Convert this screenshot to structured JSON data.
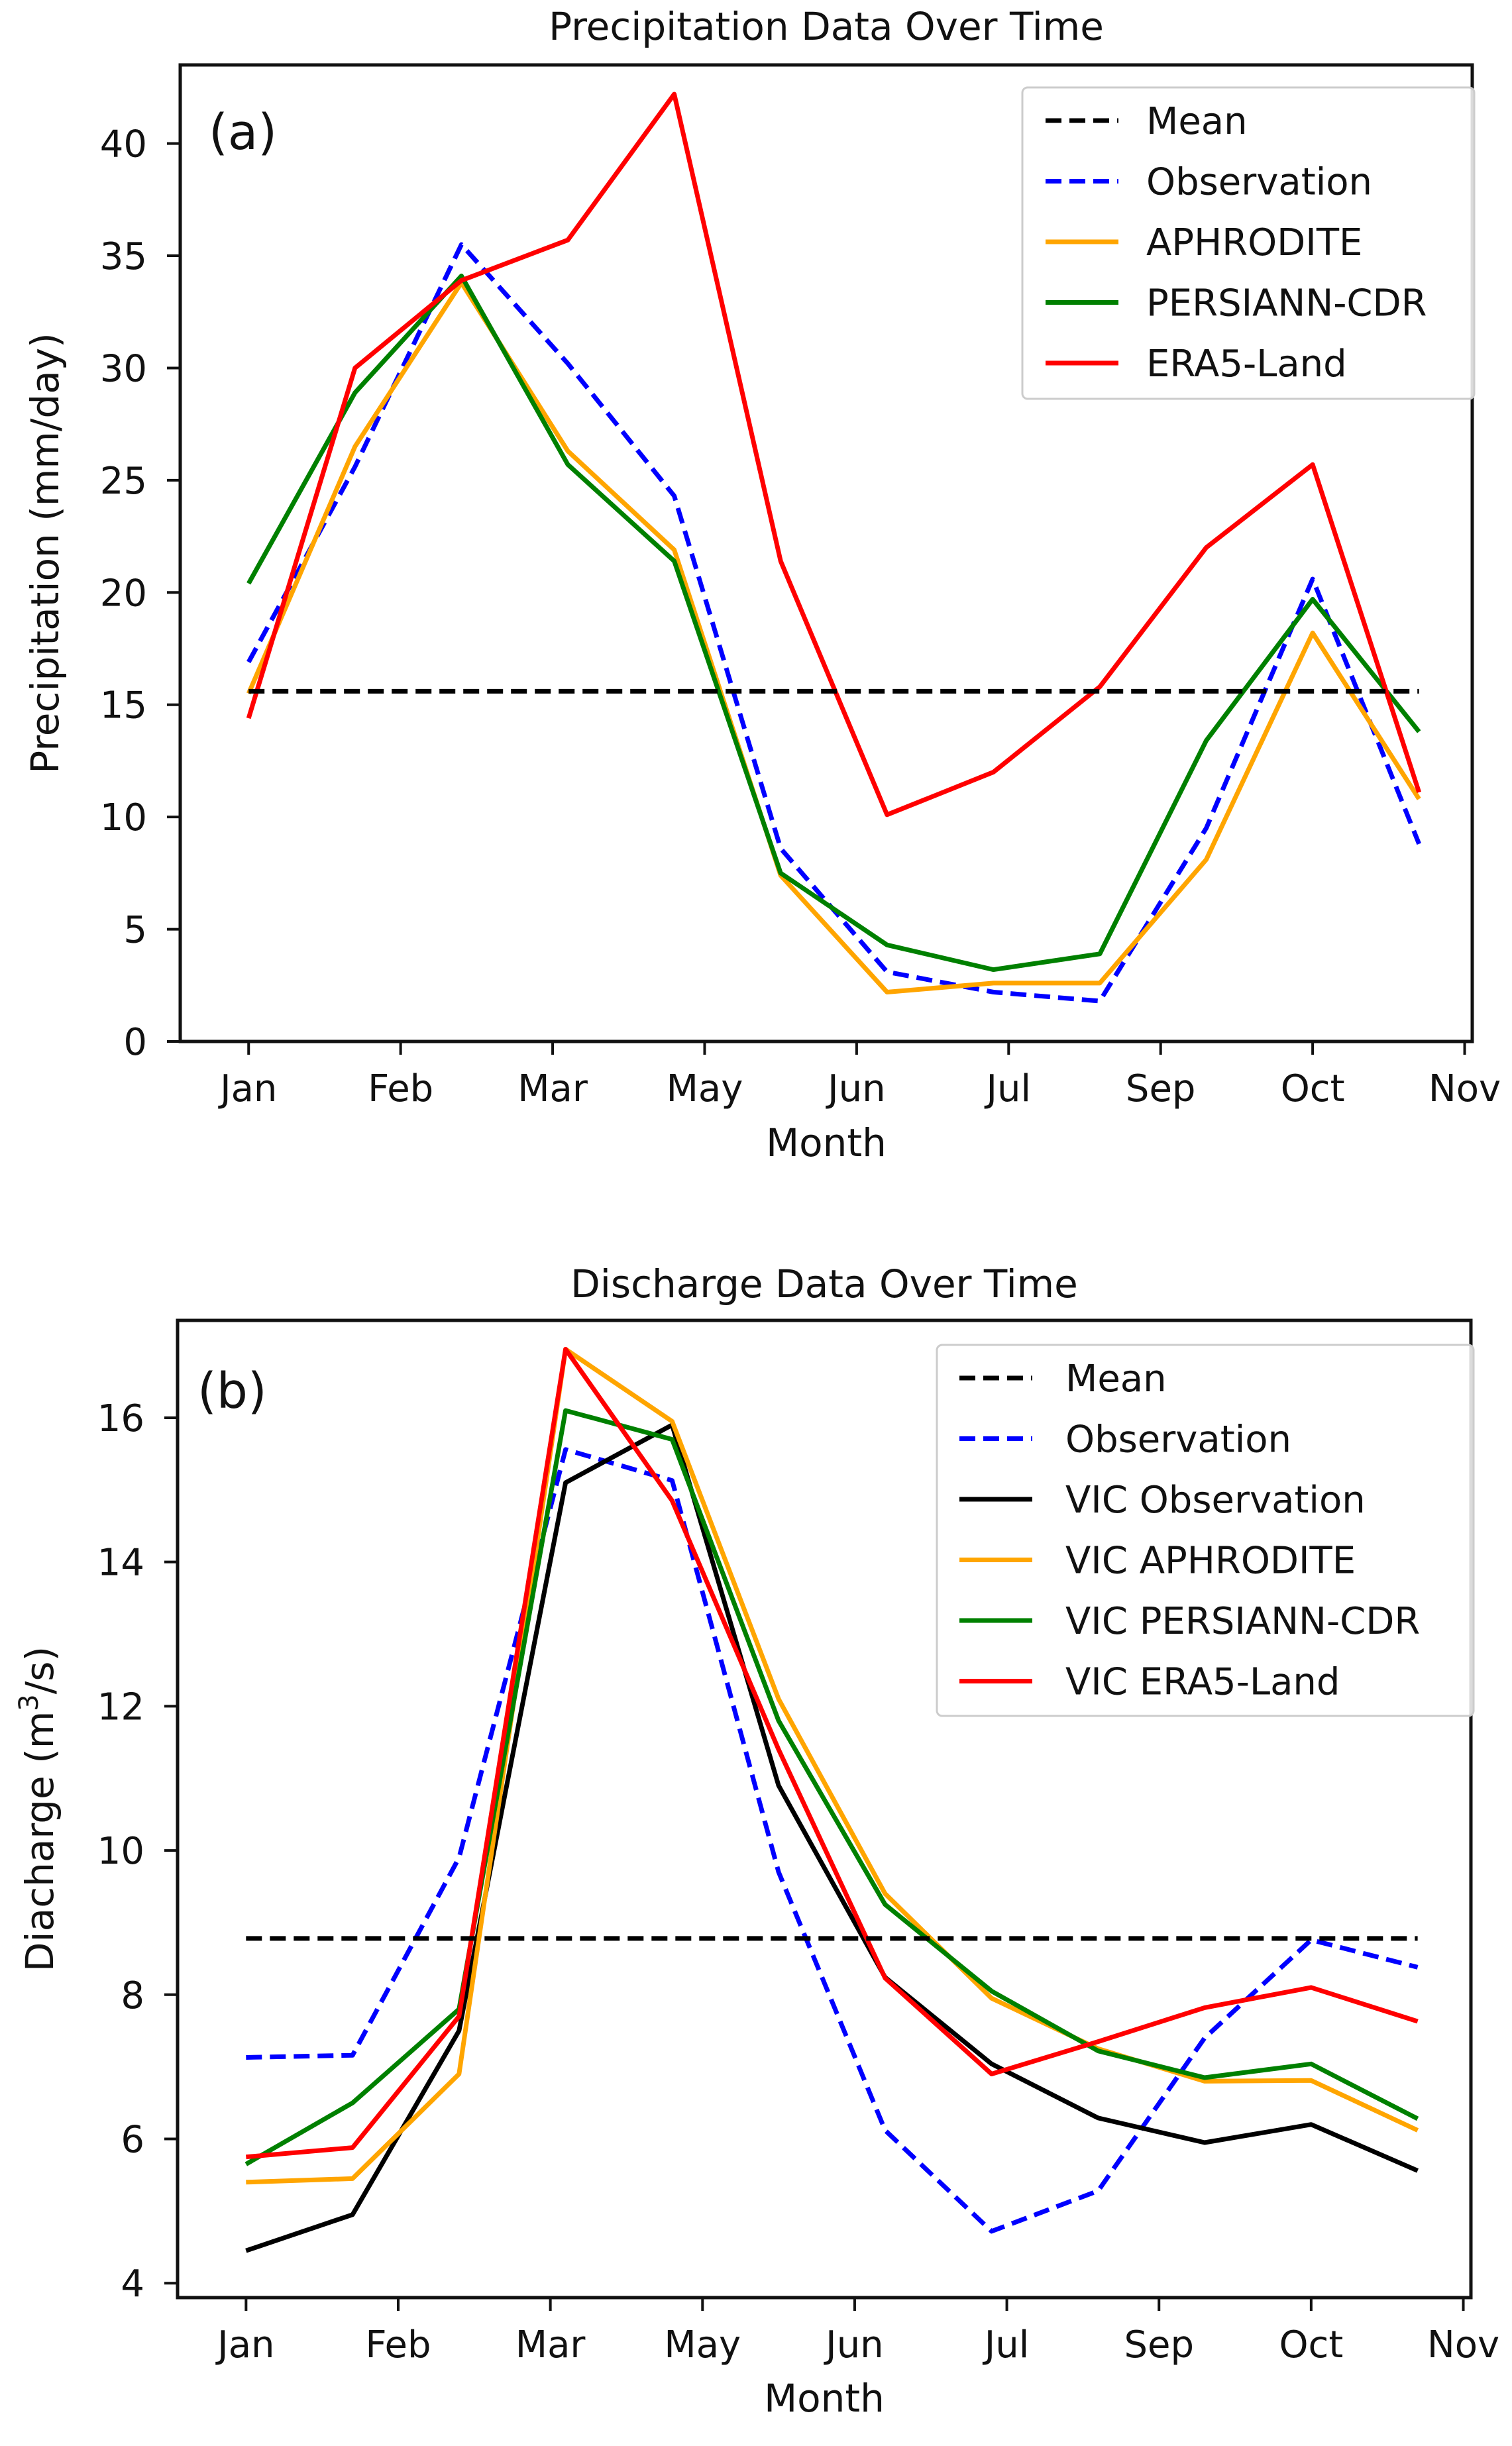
{
  "chart_data": [
    {
      "type": "line",
      "title": "Precipitation Data Over Time",
      "panel_label": "(a)",
      "xlabel": "Month",
      "ylabel": "Precipitation (mm/day)",
      "ylim": [
        0,
        43.5
      ],
      "yticks": [
        0,
        5,
        10,
        15,
        20,
        25,
        30,
        35,
        40
      ],
      "xtick_labels": [
        "Jan",
        "Feb",
        "Mar",
        "May",
        "Jun",
        "Jul",
        "Sep",
        "Oct",
        "Nov"
      ],
      "x": [
        0,
        0.7,
        1.4,
        2.1,
        2.8,
        3.5,
        4.2,
        4.9,
        5.6,
        6.3,
        7.0,
        7.7
      ],
      "legend_position": "top-right",
      "series": [
        {
          "name": "Mean",
          "color": "#000000",
          "style": "dashed",
          "values": [
            15.6,
            15.6,
            15.6,
            15.6,
            15.6,
            15.6,
            15.6,
            15.6,
            15.6,
            15.6,
            15.6,
            15.6
          ]
        },
        {
          "name": "Observation",
          "color": "#0000ff",
          "style": "dashed",
          "values": [
            16.9,
            25.6,
            35.5,
            30.2,
            24.3,
            8.6,
            3.1,
            2.2,
            1.8,
            9.5,
            20.6,
            8.8
          ]
        },
        {
          "name": "APHRODITE",
          "color": "#ffa500",
          "style": "solid",
          "values": [
            15.5,
            26.5,
            33.8,
            26.3,
            21.9,
            7.4,
            2.2,
            2.6,
            2.6,
            8.1,
            18.2,
            10.8
          ]
        },
        {
          "name": "PERSIANN-CDR",
          "color": "#008000",
          "style": "solid",
          "values": [
            20.4,
            28.9,
            34.1,
            25.7,
            21.4,
            7.5,
            4.3,
            3.2,
            3.9,
            13.4,
            19.7,
            13.8
          ]
        },
        {
          "name": "ERA5-Land",
          "color": "#ff0000",
          "style": "solid",
          "values": [
            14.4,
            30.0,
            33.9,
            35.7,
            42.2,
            21.4,
            10.1,
            12.0,
            15.8,
            22.0,
            25.7,
            11.1
          ]
        }
      ]
    },
    {
      "type": "line",
      "title": "Discharge Data Over Time",
      "panel_label": "(b)",
      "xlabel": "Month",
      "ylabel_prefix": "Diacharge (m",
      "ylabel_sup": "3",
      "ylabel_suffix": "/s)",
      "ylim": [
        3.8,
        17.35
      ],
      "yticks": [
        4,
        6,
        8,
        10,
        12,
        14,
        16
      ],
      "xtick_labels": [
        "Jan",
        "Feb",
        "Mar",
        "May",
        "Jun",
        "Jul",
        "Sep",
        "Oct",
        "Nov"
      ],
      "x": [
        0,
        0.7,
        1.4,
        2.1,
        2.8,
        3.5,
        4.2,
        4.9,
        5.6,
        6.3,
        7.0,
        7.7
      ],
      "legend_position": "top-right",
      "series": [
        {
          "name": "Mean",
          "color": "#000000",
          "style": "dashed",
          "values": [
            8.78,
            8.78,
            8.78,
            8.78,
            8.78,
            8.78,
            8.78,
            8.78,
            8.78,
            8.78,
            8.78,
            8.78
          ]
        },
        {
          "name": "Observation",
          "color": "#0000ff",
          "style": "dashed",
          "values": [
            7.13,
            7.16,
            9.9,
            15.56,
            15.13,
            9.7,
            6.12,
            4.72,
            5.28,
            7.4,
            8.76,
            8.38
          ]
        },
        {
          "name": "VIC Observation",
          "color": "#000000",
          "style": "solid",
          "values": [
            4.45,
            4.95,
            7.5,
            15.1,
            15.9,
            10.9,
            8.24,
            7.04,
            6.29,
            5.95,
            6.2,
            5.56
          ]
        },
        {
          "name": "VIC APHRODITE",
          "color": "#ffa500",
          "style": "solid",
          "values": [
            5.4,
            5.45,
            6.9,
            16.95,
            15.95,
            12.1,
            9.4,
            7.95,
            7.25,
            6.8,
            6.81,
            6.12
          ]
        },
        {
          "name": "VIC PERSIANN-CDR",
          "color": "#008000",
          "style": "solid",
          "values": [
            5.65,
            6.5,
            7.8,
            16.1,
            15.7,
            11.8,
            9.25,
            8.05,
            7.22,
            6.85,
            7.04,
            6.28
          ]
        },
        {
          "name": "VIC ERA5-Land",
          "color": "#ff0000",
          "style": "solid",
          "values": [
            5.75,
            5.88,
            7.7,
            16.95,
            14.85,
            11.4,
            8.23,
            6.9,
            7.35,
            7.82,
            8.1,
            7.63
          ]
        }
      ]
    }
  ]
}
